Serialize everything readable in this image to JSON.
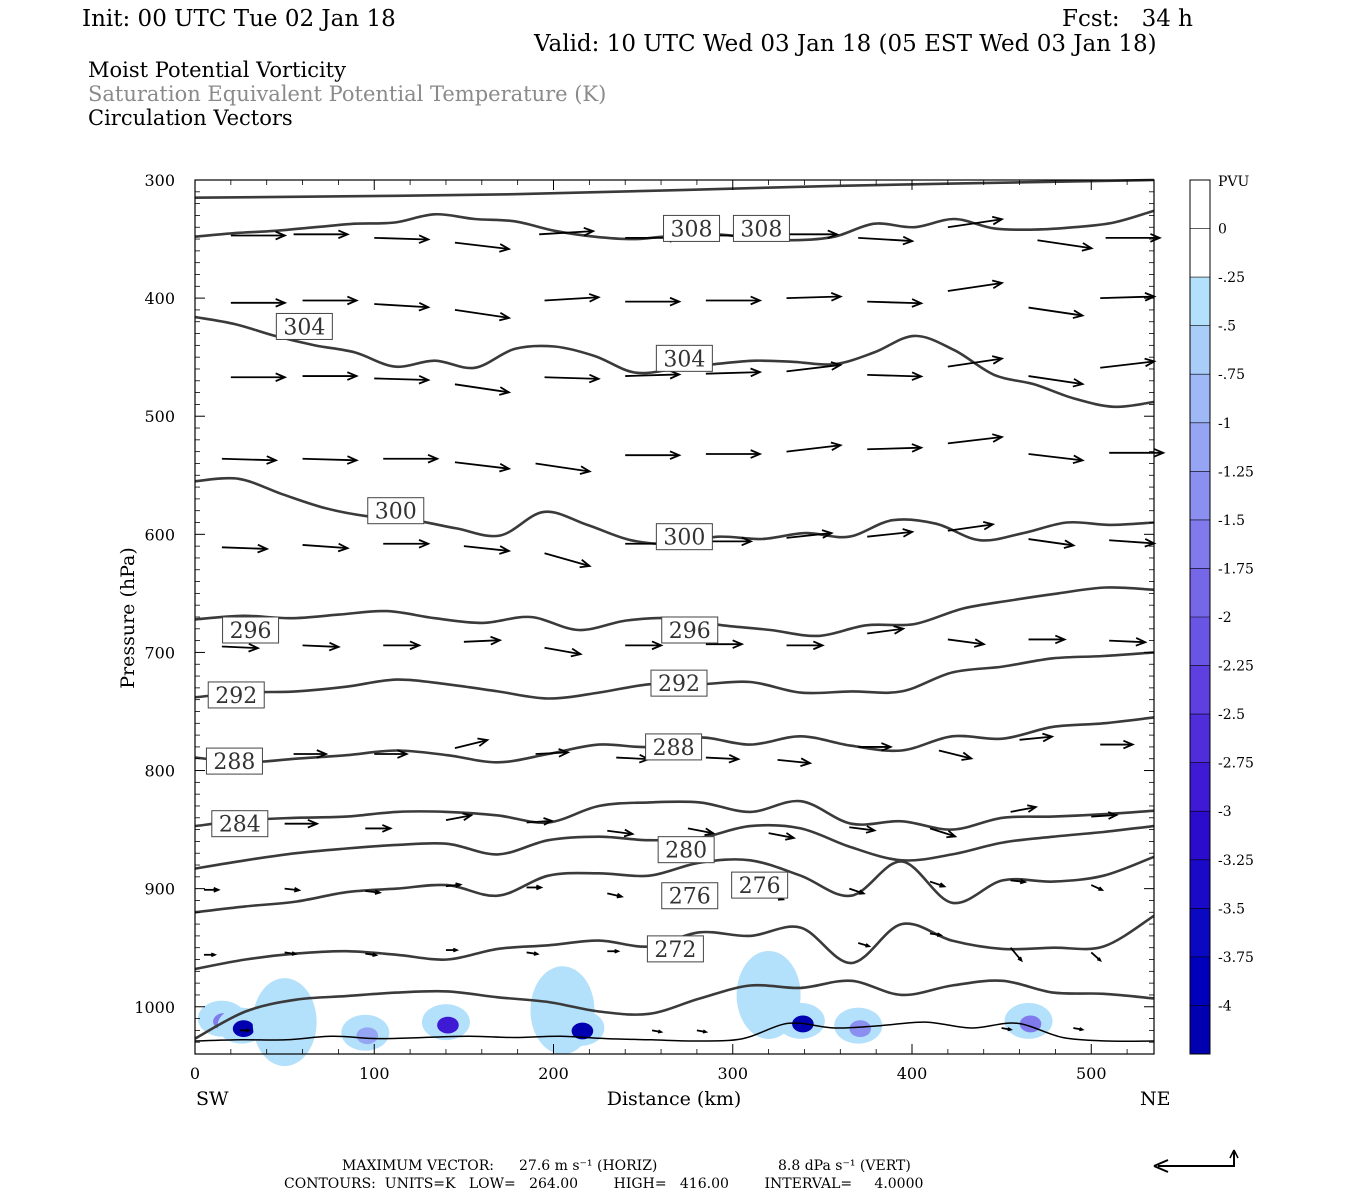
{
  "header": {
    "init": "Init: 00 UTC Tue 02 Jan 18",
    "fcst": "Fcst:   34 h",
    "valid": "Valid: 10 UTC Wed 03 Jan 18 (05 EST Wed 03 Jan 18)",
    "title_pv": "Moist Potential Vorticity",
    "title_theta": "Saturation Equivalent Potential Temperature (K)",
    "title_vectors": "Circulation Vectors"
  },
  "footer": {
    "max_vector_label": "MAXIMUM VECTOR:",
    "max_vector_horiz": "27.6 m s⁻¹ (HORIZ)",
    "max_vector_vert": "8.8 dPa s⁻¹ (VERT)",
    "contours_line": "CONTOURS:  UNITS=K   LOW=   264.00        HIGH=   416.00        INTERVAL=     4.0000"
  },
  "colors": {
    "contour": "#3a3a3a",
    "vector": "#000000",
    "pv_scale": [
      "#ffffff",
      "#ffffff",
      "#b3e0fa",
      "#a9cdf8",
      "#9fb8f6",
      "#95a4f3",
      "#8b8ff0",
      "#807aec",
      "#7567e8",
      "#6a54e4",
      "#5d40df",
      "#4f2dda",
      "#3f1ad4",
      "#2b0ccd",
      "#1a0ac8",
      "#0b08c2",
      "#0000bb",
      "#0000b0"
    ]
  },
  "chart_data": {
    "type": "cross-section",
    "x_axis": {
      "label": "Distance (km)",
      "ticks": [
        0,
        100,
        200,
        300,
        400,
        500
      ],
      "range": [
        0,
        535
      ],
      "left_end_label": "SW",
      "right_end_label": "NE"
    },
    "y_axis": {
      "label": "Pressure (hPa)",
      "ticks": [
        300,
        400,
        500,
        600,
        700,
        800,
        900,
        1000
      ],
      "range": [
        300,
        1040
      ],
      "inverted": true
    },
    "colorbar": {
      "unit_label": "PVU",
      "tick_labels": [
        "0",
        "-.25",
        "-.5",
        "-.75",
        "-1",
        "-1.25",
        "-1.5",
        "-1.75",
        "-2",
        "-2.25",
        "-2.5",
        "-2.75",
        "-3",
        "-3.25",
        "-3.5",
        "-3.75",
        "-4"
      ]
    },
    "contour_labels": [
      {
        "text": "308",
        "x": 277,
        "p": 341
      },
      {
        "text": "308",
        "x": 316,
        "p": 341
      },
      {
        "text": "304",
        "x": 61,
        "p": 424
      },
      {
        "text": "304",
        "x": 273,
        "p": 451
      },
      {
        "text": "300",
        "x": 112,
        "p": 580
      },
      {
        "text": "300",
        "x": 273,
        "p": 602
      },
      {
        "text": "296",
        "x": 31,
        "p": 681
      },
      {
        "text": "296",
        "x": 276,
        "p": 681
      },
      {
        "text": "292",
        "x": 23,
        "p": 736
      },
      {
        "text": "292",
        "x": 270,
        "p": 726
      },
      {
        "text": "288",
        "x": 22,
        "p": 792
      },
      {
        "text": "288",
        "x": 267,
        "p": 780
      },
      {
        "text": "284",
        "x": 25,
        "p": 845
      },
      {
        "text": "280",
        "x": 274,
        "p": 867
      },
      {
        "text": "276",
        "x": 276,
        "p": 906
      },
      {
        "text": "276",
        "x": 315,
        "p": 897
      },
      {
        "text": "272",
        "x": 268,
        "p": 951
      }
    ],
    "contour_lines": [
      {
        "p": [
          315,
          312,
          305,
          300
        ]
      },
      {
        "p": [
          348,
          345,
          343,
          340,
          337,
          336,
          329,
          333,
          335,
          343,
          348,
          350,
          347,
          346,
          349,
          351,
          348,
          337,
          340,
          333,
          341,
          342,
          340,
          336,
          326
        ]
      },
      {
        "p": [
          416,
          422,
          432,
          440,
          446,
          458,
          453,
          459,
          443,
          441,
          449,
          463,
          460,
          456,
          453,
          454,
          456,
          446,
          432,
          444,
          465,
          473,
          485,
          492,
          488
        ]
      },
      {
        "p": [
          555,
          553,
          566,
          578,
          585,
          588,
          595,
          601,
          581,
          592,
          605,
          608,
          602,
          604,
          599,
          602,
          588,
          591,
          605,
          599,
          590,
          592,
          590
        ]
      },
      {
        "p": [
          672,
          669,
          671,
          668,
          665,
          671,
          675,
          670,
          681,
          673,
          671,
          677,
          681,
          686,
          677,
          676,
          663,
          656,
          650,
          645,
          647
        ]
      },
      {
        "p": [
          738,
          734,
          733,
          729,
          723,
          727,
          733,
          739,
          734,
          727,
          727,
          725,
          734,
          733,
          733,
          717,
          712,
          705,
          703,
          700
        ]
      },
      {
        "p": [
          789,
          793,
          790,
          787,
          783,
          787,
          793,
          786,
          778,
          780,
          772,
          778,
          771,
          779,
          783,
          771,
          773,
          763,
          760,
          755
        ]
      },
      {
        "p": [
          847,
          842,
          840,
          839,
          835,
          835,
          838,
          844,
          830,
          827,
          827,
          835,
          826,
          845,
          843,
          850,
          840,
          839,
          837,
          834
        ]
      },
      {
        "p": [
          883,
          876,
          870,
          866,
          863,
          862,
          871,
          859,
          856,
          859,
          857,
          847,
          849,
          865,
          876,
          871,
          861,
          856,
          852,
          847
        ]
      },
      {
        "p": [
          920,
          915,
          911,
          903,
          900,
          897,
          906,
          889,
          887,
          889,
          878,
          876,
          889,
          906,
          877,
          912,
          893,
          894,
          889,
          873
        ]
      },
      {
        "p": [
          968,
          960,
          955,
          953,
          956,
          960,
          951,
          948,
          944,
          949,
          937,
          940,
          933,
          963,
          930,
          944,
          951,
          950,
          949,
          923
        ]
      },
      {
        "p": [
          1027,
          1004,
          994,
          991,
          988,
          987,
          992,
          996,
          1004,
          1006,
          993,
          982,
          984,
          978,
          990,
          982,
          978,
          988,
          989,
          993
        ]
      }
    ],
    "pv_patches": [
      {
        "x": 15,
        "p": 1010,
        "level": -1.5
      },
      {
        "x": 26,
        "p": 1016,
        "level": -4
      },
      {
        "x": 50,
        "p": 1013,
        "level": -0.5
      },
      {
        "x": 95,
        "p": 1022,
        "level": -1
      },
      {
        "x": 140,
        "p": 1013,
        "level": -2.75
      },
      {
        "x": 205,
        "p": 1003,
        "level": -0.75
      },
      {
        "x": 215,
        "p": 1018,
        "level": -4
      },
      {
        "x": 320,
        "p": 990,
        "level": -0.25
      },
      {
        "x": 338,
        "p": 1012,
        "level": -4
      },
      {
        "x": 370,
        "p": 1016,
        "level": -1.25
      },
      {
        "x": 465,
        "p": 1012,
        "level": -1.5
      }
    ],
    "vectors": [
      {
        "x": 20,
        "p": 347,
        "u": 30,
        "w": 0
      },
      {
        "x": 55,
        "p": 346,
        "u": 30,
        "w": 0
      },
      {
        "x": 100,
        "p": 349,
        "u": 30,
        "w": 1
      },
      {
        "x": 145,
        "p": 353,
        "u": 30,
        "w": 4
      },
      {
        "x": 192,
        "p": 346,
        "u": 30,
        "w": -2
      },
      {
        "x": 240,
        "p": 349,
        "u": 30,
        "w": 0
      },
      {
        "x": 285,
        "p": 347,
        "u": 30,
        "w": 0
      },
      {
        "x": 328,
        "p": 346,
        "u": 30,
        "w": 0
      },
      {
        "x": 370,
        "p": 349,
        "u": 30,
        "w": 2
      },
      {
        "x": 420,
        "p": 340,
        "u": 30,
        "w": -5
      },
      {
        "x": 470,
        "p": 351,
        "u": 30,
        "w": 5
      },
      {
        "x": 508,
        "p": 349,
        "u": 30,
        "w": 0
      },
      {
        "x": 20,
        "p": 404,
        "u": 30,
        "w": 0
      },
      {
        "x": 60,
        "p": 402,
        "u": 30,
        "w": 0
      },
      {
        "x": 100,
        "p": 405,
        "u": 30,
        "w": 2
      },
      {
        "x": 145,
        "p": 410,
        "u": 30,
        "w": 5
      },
      {
        "x": 195,
        "p": 402,
        "u": 30,
        "w": -2
      },
      {
        "x": 240,
        "p": 403,
        "u": 30,
        "w": 0
      },
      {
        "x": 285,
        "p": 402,
        "u": 30,
        "w": 0
      },
      {
        "x": 330,
        "p": 400,
        "u": 30,
        "w": -1
      },
      {
        "x": 375,
        "p": 403,
        "u": 30,
        "w": 1
      },
      {
        "x": 420,
        "p": 394,
        "u": 30,
        "w": -5
      },
      {
        "x": 465,
        "p": 408,
        "u": 30,
        "w": 5
      },
      {
        "x": 505,
        "p": 400,
        "u": 30,
        "w": -1
      },
      {
        "x": 20,
        "p": 467,
        "u": 30,
        "w": 0
      },
      {
        "x": 60,
        "p": 466,
        "u": 30,
        "w": 0
      },
      {
        "x": 100,
        "p": 468,
        "u": 30,
        "w": 1
      },
      {
        "x": 145,
        "p": 473,
        "u": 30,
        "w": 5
      },
      {
        "x": 195,
        "p": 467,
        "u": 30,
        "w": 1
      },
      {
        "x": 240,
        "p": 466,
        "u": 30,
        "w": -1
      },
      {
        "x": 285,
        "p": 464,
        "u": 30,
        "w": -1
      },
      {
        "x": 330,
        "p": 462,
        "u": 30,
        "w": -4
      },
      {
        "x": 375,
        "p": 465,
        "u": 30,
        "w": 1
      },
      {
        "x": 420,
        "p": 458,
        "u": 30,
        "w": -5
      },
      {
        "x": 465,
        "p": 466,
        "u": 30,
        "w": 5
      },
      {
        "x": 505,
        "p": 459,
        "u": 30,
        "w": -4
      },
      {
        "x": 15,
        "p": 536,
        "u": 30,
        "w": 1
      },
      {
        "x": 60,
        "p": 536,
        "u": 30,
        "w": 1
      },
      {
        "x": 105,
        "p": 536,
        "u": 30,
        "w": 0
      },
      {
        "x": 145,
        "p": 539,
        "u": 30,
        "w": 4
      },
      {
        "x": 190,
        "p": 540,
        "u": 30,
        "w": 5
      },
      {
        "x": 240,
        "p": 533,
        "u": 30,
        "w": 0
      },
      {
        "x": 285,
        "p": 532,
        "u": 30,
        "w": 0
      },
      {
        "x": 330,
        "p": 530,
        "u": 30,
        "w": -4
      },
      {
        "x": 375,
        "p": 528,
        "u": 30,
        "w": -1
      },
      {
        "x": 420,
        "p": 523,
        "u": 30,
        "w": -4
      },
      {
        "x": 465,
        "p": 532,
        "u": 30,
        "w": 4
      },
      {
        "x": 510,
        "p": 531,
        "u": 30,
        "w": 0
      },
      {
        "x": 15,
        "p": 611,
        "u": 25,
        "w": 1
      },
      {
        "x": 60,
        "p": 609,
        "u": 25,
        "w": 2
      },
      {
        "x": 105,
        "p": 608,
        "u": 25,
        "w": 0
      },
      {
        "x": 150,
        "p": 610,
        "u": 25,
        "w": 3
      },
      {
        "x": 195,
        "p": 616,
        "u": 25,
        "w": 8
      },
      {
        "x": 240,
        "p": 608,
        "u": 25,
        "w": 0
      },
      {
        "x": 285,
        "p": 606,
        "u": 25,
        "w": 0
      },
      {
        "x": 330,
        "p": 603,
        "u": 25,
        "w": -3
      },
      {
        "x": 375,
        "p": 602,
        "u": 25,
        "w": -3
      },
      {
        "x": 420,
        "p": 597,
        "u": 25,
        "w": -4
      },
      {
        "x": 465,
        "p": 604,
        "u": 25,
        "w": 4
      },
      {
        "x": 510,
        "p": 605,
        "u": 25,
        "w": 2
      },
      {
        "x": 15,
        "p": 695,
        "u": 20,
        "w": 1
      },
      {
        "x": 60,
        "p": 694,
        "u": 20,
        "w": 1
      },
      {
        "x": 105,
        "p": 694,
        "u": 20,
        "w": 0
      },
      {
        "x": 150,
        "p": 691,
        "u": 20,
        "w": -1
      },
      {
        "x": 195,
        "p": 696,
        "u": 20,
        "w": 4
      },
      {
        "x": 240,
        "p": 694,
        "u": 20,
        "w": 0
      },
      {
        "x": 285,
        "p": 693,
        "u": 20,
        "w": 0
      },
      {
        "x": 330,
        "p": 694,
        "u": 20,
        "w": 0
      },
      {
        "x": 375,
        "p": 684,
        "u": 20,
        "w": -3
      },
      {
        "x": 420,
        "p": 689,
        "u": 20,
        "w": 3
      },
      {
        "x": 465,
        "p": 689,
        "u": 20,
        "w": 0
      },
      {
        "x": 510,
        "p": 690,
        "u": 20,
        "w": 1
      },
      {
        "x": 55,
        "p": 786,
        "u": 18,
        "w": 0
      },
      {
        "x": 100,
        "p": 786,
        "u": 18,
        "w": 0
      },
      {
        "x": 145,
        "p": 781,
        "u": 18,
        "w": -5
      },
      {
        "x": 190,
        "p": 786,
        "u": 18,
        "w": -1
      },
      {
        "x": 235,
        "p": 789,
        "u": 18,
        "w": 1
      },
      {
        "x": 285,
        "p": 789,
        "u": 18,
        "w": 1
      },
      {
        "x": 325,
        "p": 791,
        "u": 18,
        "w": 2
      },
      {
        "x": 370,
        "p": 780,
        "u": 18,
        "w": 0
      },
      {
        "x": 415,
        "p": 783,
        "u": 18,
        "w": 5
      },
      {
        "x": 460,
        "p": 774,
        "u": 18,
        "w": -2
      },
      {
        "x": 505,
        "p": 778,
        "u": 18,
        "w": 0
      },
      {
        "x": 10,
        "p": 849,
        "u": 18,
        "w": 0
      },
      {
        "x": 50,
        "p": 845,
        "u": 18,
        "w": 0
      },
      {
        "x": 95,
        "p": 849,
        "u": 14,
        "w": 0
      },
      {
        "x": 140,
        "p": 842,
        "u": 14,
        "w": -3
      },
      {
        "x": 185,
        "p": 844,
        "u": 14,
        "w": -1
      },
      {
        "x": 230,
        "p": 851,
        "u": 14,
        "w": 2
      },
      {
        "x": 275,
        "p": 849,
        "u": 14,
        "w": 3
      },
      {
        "x": 320,
        "p": 853,
        "u": 14,
        "w": 3
      },
      {
        "x": 365,
        "p": 848,
        "u": 14,
        "w": 2
      },
      {
        "x": 410,
        "p": 849,
        "u": 14,
        "w": 5
      },
      {
        "x": 455,
        "p": 835,
        "u": 14,
        "w": -3
      },
      {
        "x": 500,
        "p": 839,
        "u": 14,
        "w": -1
      },
      {
        "x": 5,
        "p": 901,
        "u": 8,
        "w": 0
      },
      {
        "x": 50,
        "p": 900,
        "u": 8,
        "w": 1
      },
      {
        "x": 95,
        "p": 902,
        "u": 8,
        "w": 1
      },
      {
        "x": 140,
        "p": 898,
        "u": 8,
        "w": -1
      },
      {
        "x": 185,
        "p": 899,
        "u": 8,
        "w": 0
      },
      {
        "x": 230,
        "p": 904,
        "u": 8,
        "w": 2
      },
      {
        "x": 275,
        "p": 897,
        "u": 8,
        "w": 1
      },
      {
        "x": 320,
        "p": 905,
        "u": 8,
        "w": 3
      },
      {
        "x": 365,
        "p": 900,
        "u": 8,
        "w": 3
      },
      {
        "x": 410,
        "p": 894,
        "u": 8,
        "w": 3
      },
      {
        "x": 455,
        "p": 893,
        "u": 8,
        "w": 1
      },
      {
        "x": 500,
        "p": 897,
        "u": 6,
        "w": 3
      },
      {
        "x": 5,
        "p": 956,
        "u": 6,
        "w": 0
      },
      {
        "x": 50,
        "p": 954,
        "u": 6,
        "w": 1
      },
      {
        "x": 95,
        "p": 955,
        "u": 6,
        "w": 1
      },
      {
        "x": 140,
        "p": 952,
        "u": 6,
        "w": 0
      },
      {
        "x": 185,
        "p": 954,
        "u": 6,
        "w": 1
      },
      {
        "x": 230,
        "p": 953,
        "u": 6,
        "w": 0
      },
      {
        "x": 370,
        "p": 946,
        "u": 6,
        "w": 2
      },
      {
        "x": 410,
        "p": 938,
        "u": 6,
        "w": 1
      },
      {
        "x": 455,
        "p": 950,
        "u": 6,
        "w": 8
      },
      {
        "x": 500,
        "p": 954,
        "u": 5,
        "w": 5
      },
      {
        "x": 25,
        "p": 1020,
        "u": 5,
        "w": 0
      },
      {
        "x": 255,
        "p": 1020,
        "u": 5,
        "w": 1
      },
      {
        "x": 280,
        "p": 1020,
        "u": 5,
        "w": 1
      },
      {
        "x": 450,
        "p": 1018,
        "u": 5,
        "w": 1
      },
      {
        "x": 490,
        "p": 1018,
        "u": 5,
        "w": 1
      }
    ],
    "terrain_p": [
      1029,
      1028,
      1028,
      1025,
      1027,
      1026,
      1025,
      1026,
      1025,
      1027,
      1028,
      1029,
      1027,
      1014,
      1018,
      1016,
      1013,
      1018,
      1014,
      1026,
      1029,
      1029
    ]
  }
}
